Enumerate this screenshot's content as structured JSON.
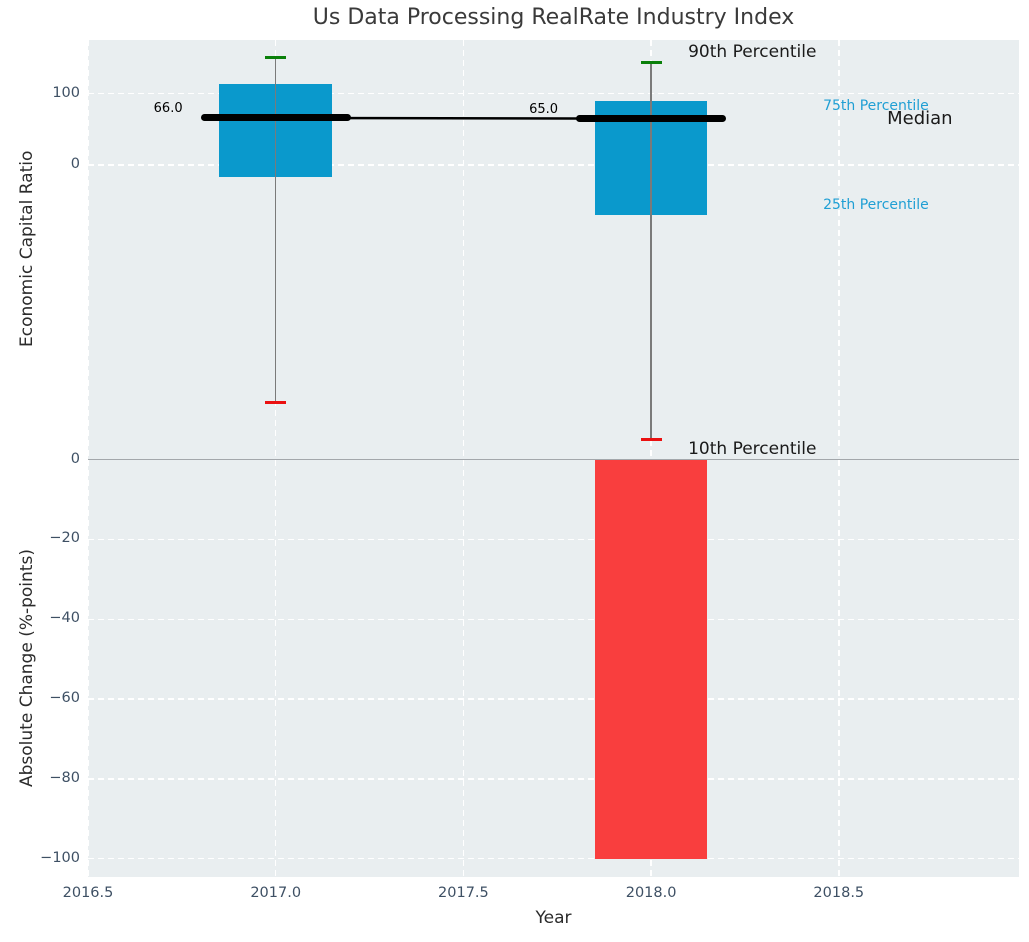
{
  "colors": {
    "plot_background": "#e9eef0",
    "grid_white": "#ffffff",
    "tick_label": "#3e5064",
    "box_blue": "#0a99cc",
    "cap_green": "#0a800a",
    "cap_red": "#ea1010",
    "bar_red": "#f93e3e",
    "median_black": "#000000",
    "whisker_gray": "#7a7a7a",
    "zero_line_gray": "#a3a7ab",
    "annotation_blue": "#1f9fd4",
    "annotation_black": "#1a1a1a",
    "title_color": "#3a3a3a"
  },
  "chart_data": {
    "type": "box",
    "title": "Us Data Processing RealRate Industry Index",
    "xlabel": "Year",
    "xlim": [
      2016.5,
      2018.98
    ],
    "x_ticks": [
      {
        "value": 2016.5,
        "label": "2016.5"
      },
      {
        "value": 2017.0,
        "label": "2017.0"
      },
      {
        "value": 2017.5,
        "label": "2017.5"
      },
      {
        "value": 2018.0,
        "label": "2018.0"
      },
      {
        "value": 2018.5,
        "label": "2018.5"
      }
    ],
    "box_width_years": 0.3,
    "median_segment_halfwidth_years": 0.2,
    "panels": [
      {
        "ylabel": "Economic Capital Ratio",
        "ylim": [
          -410,
          175
        ],
        "grid": true,
        "y_ticks": [
          {
            "value": 100,
            "label": "100"
          },
          {
            "value": 0,
            "label": "0"
          }
        ],
        "series": [
          {
            "year": 2017,
            "p90": 151,
            "p75": 113,
            "median": 66.0,
            "p25": -17,
            "p10": -332,
            "median_label": "66.0"
          },
          {
            "year": 2018,
            "p90": 144,
            "p75": 90,
            "median": 65.0,
            "p25": -70,
            "p10": -384,
            "median_label": "65.0"
          }
        ],
        "annotations": [
          {
            "text": "90th Percentile",
            "anchor": "p90",
            "color": "black",
            "size": 17
          },
          {
            "text": "75th Percentile",
            "anchor": "p75",
            "color": "blue",
            "size": 14
          },
          {
            "text": "Median",
            "anchor": "median",
            "color": "black",
            "size": 18
          },
          {
            "text": "25th Percentile",
            "anchor": "p25",
            "color": "blue",
            "size": 14
          },
          {
            "text": "10th Percentile",
            "anchor": "p10",
            "color": "black",
            "size": 17
          }
        ]
      },
      {
        "ylabel": "Absolute Change (%-points)",
        "ylim": [
          -104.6,
          0.3
        ],
        "grid": true,
        "y_ticks": [
          {
            "value": 0,
            "label": "0"
          },
          {
            "value": -20,
            "label": "−20"
          },
          {
            "value": -40,
            "label": "−40"
          },
          {
            "value": -60,
            "label": "−60"
          },
          {
            "value": -80,
            "label": "−80"
          },
          {
            "value": -100,
            "label": "−100"
          }
        ],
        "bars": [
          {
            "year": 2018,
            "value": -100
          }
        ]
      }
    ]
  }
}
